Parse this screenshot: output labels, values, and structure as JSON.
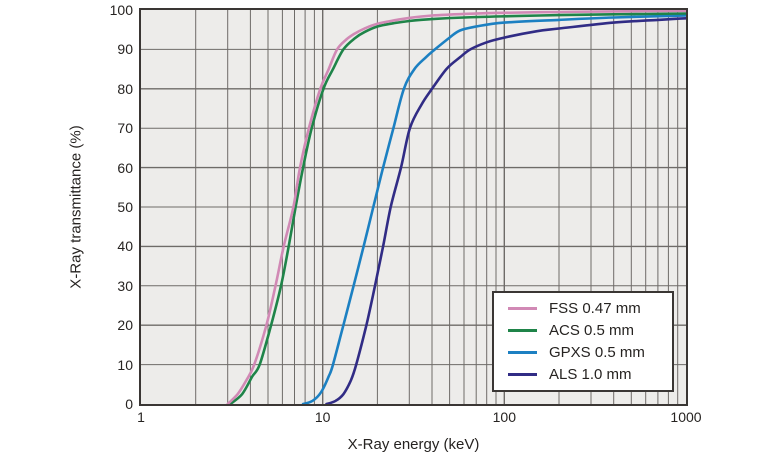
{
  "colors": {
    "plot_bg": "#edecea",
    "grid": "#6e6b68",
    "frame": "#3a3634",
    "text": "#262321",
    "legend_bg": "#ffffff"
  },
  "chart_data": {
    "type": "line",
    "title": "",
    "xlabel": "X-Ray energy (keV)",
    "ylabel": "X-Ray transmittance (%)",
    "x_scale": "log",
    "xlim": [
      1,
      1000
    ],
    "ylim": [
      0,
      100
    ],
    "x_ticks": [
      1,
      10,
      100,
      1000
    ],
    "y_ticks": [
      0,
      10,
      20,
      30,
      40,
      50,
      60,
      70,
      80,
      90,
      100
    ],
    "grid": "major and minor log grid, on",
    "legend_position": "inside lower-right",
    "series": [
      {
        "name": "FSS 0.47 mm",
        "color": "#d189b5",
        "points": [
          [
            3,
            0
          ],
          [
            3.4,
            2.5
          ],
          [
            3.8,
            6
          ],
          [
            4.2,
            10
          ],
          [
            4.9,
            20
          ],
          [
            5.5,
            30
          ],
          [
            6.1,
            40
          ],
          [
            6.9,
            50
          ],
          [
            7.5,
            60
          ],
          [
            8.4,
            70
          ],
          [
            9.7,
            80
          ],
          [
            10.8,
            85
          ],
          [
            12,
            90
          ],
          [
            13.5,
            92.5
          ],
          [
            15,
            94
          ],
          [
            17,
            95.3
          ],
          [
            20,
            96.5
          ],
          [
            25,
            97.4
          ],
          [
            30,
            98
          ],
          [
            40,
            98.6
          ],
          [
            60,
            99
          ],
          [
            100,
            99.3
          ],
          [
            200,
            99.5
          ],
          [
            400,
            99.65
          ],
          [
            1000,
            99.8
          ]
        ]
      },
      {
        "name": "ACS 0.5 mm",
        "color": "#1f8449",
        "points": [
          [
            3.1,
            0
          ],
          [
            3.6,
            2.5
          ],
          [
            4.1,
            7
          ],
          [
            4.5,
            10
          ],
          [
            5.2,
            20
          ],
          [
            5.9,
            30
          ],
          [
            6.5,
            40
          ],
          [
            7.1,
            50
          ],
          [
            7.8,
            60
          ],
          [
            8.7,
            70
          ],
          [
            10.1,
            80
          ],
          [
            11.4,
            85
          ],
          [
            13,
            90
          ],
          [
            15,
            92.8
          ],
          [
            17,
            94.4
          ],
          [
            20,
            95.8
          ],
          [
            25,
            96.7
          ],
          [
            30,
            97.2
          ],
          [
            40,
            97.7
          ],
          [
            60,
            98.1
          ],
          [
            100,
            98.4
          ],
          [
            200,
            98.7
          ],
          [
            400,
            98.9
          ],
          [
            1000,
            99.1
          ]
        ]
      },
      {
        "name": "GPXS 0.5 mm",
        "color": "#1c80c2",
        "points": [
          [
            7.8,
            0
          ],
          [
            8.8,
            0.8
          ],
          [
            9.8,
            3
          ],
          [
            10.8,
            7
          ],
          [
            11.4,
            10
          ],
          [
            13,
            20
          ],
          [
            14.8,
            30
          ],
          [
            16.8,
            40
          ],
          [
            19,
            50
          ],
          [
            21.5,
            60
          ],
          [
            24.5,
            70
          ],
          [
            28,
            80
          ],
          [
            32,
            85
          ],
          [
            37,
            88
          ],
          [
            41.5,
            90
          ],
          [
            50,
            93
          ],
          [
            57,
            94.8
          ],
          [
            70,
            95.8
          ],
          [
            100,
            96.8
          ],
          [
            200,
            97.5
          ],
          [
            400,
            98.1
          ],
          [
            1000,
            98.6
          ]
        ]
      },
      {
        "name": "ALS 1.0 mm",
        "color": "#312c85",
        "points": [
          [
            10.5,
            0
          ],
          [
            11.8,
            0.8
          ],
          [
            13,
            2.5
          ],
          [
            14.3,
            6
          ],
          [
            15.3,
            10
          ],
          [
            17.4,
            20
          ],
          [
            19.4,
            30
          ],
          [
            21.5,
            40
          ],
          [
            23.7,
            50
          ],
          [
            27,
            60
          ],
          [
            30.2,
            70
          ],
          [
            35,
            76
          ],
          [
            40,
            80
          ],
          [
            48,
            85
          ],
          [
            57,
            88
          ],
          [
            65,
            90
          ],
          [
            80,
            91.8
          ],
          [
            100,
            93
          ],
          [
            150,
            94.6
          ],
          [
            200,
            95.3
          ],
          [
            400,
            96.8
          ],
          [
            700,
            97.5
          ],
          [
            1000,
            97.9
          ]
        ]
      }
    ]
  }
}
